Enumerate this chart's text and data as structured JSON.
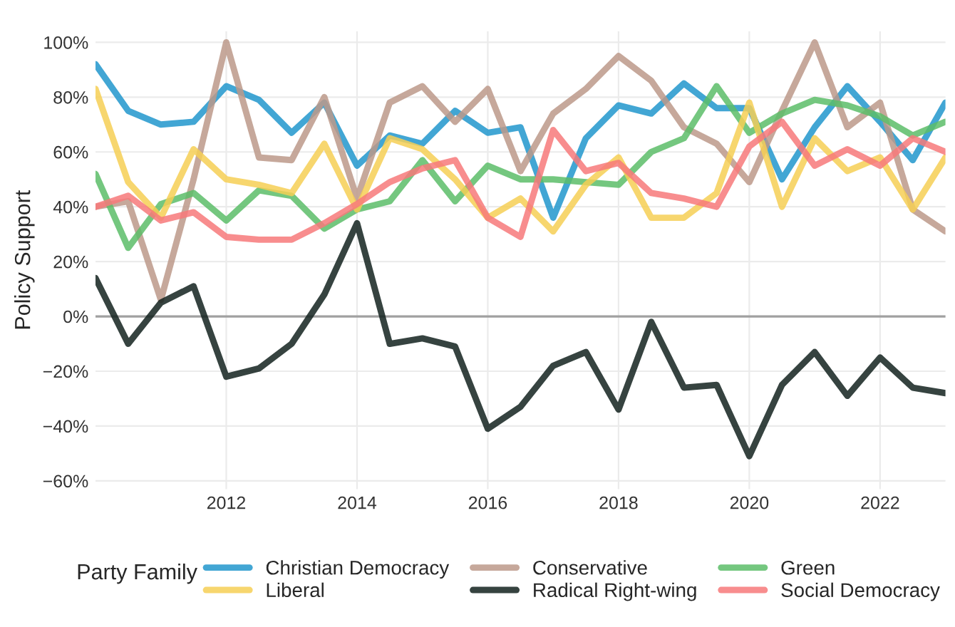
{
  "chart_data": {
    "type": "line",
    "ylabel": "Policy Support",
    "legend_title": "Party Family",
    "x": [
      2010,
      2010.5,
      2011,
      2011.5,
      2012,
      2012.5,
      2013,
      2013.5,
      2014,
      2014.5,
      2015,
      2015.5,
      2016,
      2016.5,
      2017,
      2017.5,
      2018,
      2018.5,
      2019,
      2019.5,
      2020,
      2020.5,
      2021,
      2021.5,
      2022,
      2022.5,
      2023
    ],
    "series": [
      {
        "name": "Christian Democracy",
        "color": "#2196cc",
        "values": [
          92,
          75,
          70,
          71,
          84,
          79,
          67,
          78,
          55,
          66,
          63,
          75,
          67,
          69,
          36,
          65,
          77,
          74,
          85,
          76,
          76,
          50,
          69,
          84,
          71,
          57,
          78
        ]
      },
      {
        "name": "Conservative",
        "color": "#bc998a",
        "values": [
          40,
          42,
          6,
          50,
          100,
          58,
          57,
          80,
          43,
          78,
          84,
          71,
          83,
          53,
          74,
          83,
          95,
          86,
          69,
          63,
          49,
          75,
          100,
          69,
          78,
          39,
          31
        ]
      },
      {
        "name": "Green",
        "color": "#5cbd68",
        "values": [
          52,
          25,
          41,
          45,
          35,
          46,
          44,
          32,
          39,
          42,
          57,
          42,
          55,
          50,
          50,
          49,
          48,
          60,
          65,
          84,
          67,
          74,
          79,
          77,
          73,
          66,
          71
        ]
      },
      {
        "name": "Liberal",
        "color": "#f6cf55",
        "values": [
          83,
          49,
          36,
          61,
          50,
          48,
          45,
          63,
          39,
          65,
          61,
          50,
          36,
          43,
          31,
          48,
          58,
          36,
          36,
          45,
          78,
          40,
          65,
          53,
          58,
          39,
          58
        ]
      },
      {
        "name": "Radical Right-wing",
        "color": "#13221e",
        "values": [
          14,
          -10,
          5,
          11,
          -22,
          -19,
          -10,
          8,
          34,
          -10,
          -8,
          -11,
          -41,
          -33,
          -18,
          -13,
          -34,
          -2,
          -26,
          -25,
          -51,
          -25,
          -13,
          -29,
          -15,
          -26,
          -28
        ]
      },
      {
        "name": "Social Democracy",
        "color": "#f7797a",
        "values": [
          40,
          44,
          35,
          38,
          29,
          28,
          28,
          34,
          41,
          49,
          54,
          57,
          36,
          29,
          68,
          53,
          56,
          45,
          43,
          40,
          62,
          71,
          55,
          61,
          55,
          65,
          60
        ]
      }
    ],
    "xlim": [
      2010,
      2023
    ],
    "ylim": [
      -63,
      104
    ],
    "xticks": [
      2012,
      2014,
      2016,
      2018,
      2020,
      2022
    ],
    "yticks": [
      {
        "value": -60,
        "label": "−60%"
      },
      {
        "value": -40,
        "label": "−40%"
      },
      {
        "value": -20,
        "label": "−20%"
      },
      {
        "value": 0,
        "label": "0%"
      },
      {
        "value": 20,
        "label": "20%"
      },
      {
        "value": 40,
        "label": "40%"
      },
      {
        "value": 60,
        "label": "60%"
      },
      {
        "value": 80,
        "label": "80%"
      },
      {
        "value": 100,
        "label": "100%"
      }
    ],
    "ref_lines": [
      {
        "axis": "y",
        "value": 0,
        "color": "#a0a0a0"
      }
    ],
    "grid": true,
    "legend": "bottom",
    "line_style": "solid",
    "marker": "none"
  }
}
